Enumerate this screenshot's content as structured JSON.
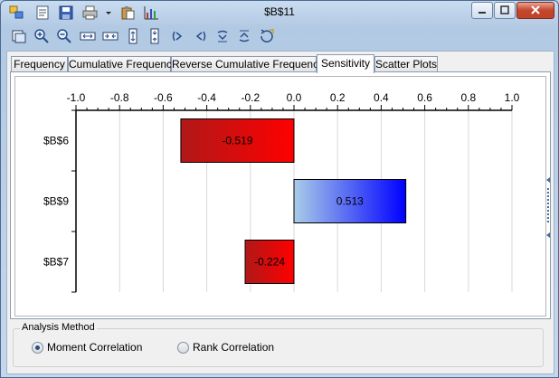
{
  "window": {
    "title": "$B$11",
    "toolbar_icons": [
      "copy-icon",
      "open-icon",
      "save-icon",
      "print-icon",
      "dropdown-arrow-icon",
      "clipboard-icon",
      "chart-icon"
    ],
    "toolbar2_icons": [
      "fit-window-icon",
      "zoom-in-icon",
      "zoom-out-icon",
      "expand-horizontal-icon",
      "shrink-horizontal-icon",
      "expand-vertical-icon",
      "shrink-vertical-icon",
      "rotate-left-icon",
      "rotate-right-icon",
      "flip-up-icon",
      "flip-down-icon",
      "reset-icon"
    ]
  },
  "tabs": [
    {
      "label": "Frequency"
    },
    {
      "label": "Cumulative Frequency"
    },
    {
      "label": "Reverse Cumulative Frequency"
    },
    {
      "label": "Sensitivity",
      "active": true
    },
    {
      "label": "Scatter Plots"
    }
  ],
  "chart_data": {
    "type": "bar",
    "orientation": "horizontal",
    "categories": [
      "$B$6",
      "$B$9",
      "$B$7"
    ],
    "values": [
      -0.519,
      0.513,
      -0.224
    ],
    "data_labels": [
      "-0.519",
      "0.513",
      "-0.224"
    ],
    "xlim": [
      -1.0,
      1.0
    ],
    "xticks": [
      "-1.0",
      "-0.8",
      "-0.6",
      "-0.4",
      "-0.2",
      "0.0",
      "0.2",
      "0.4",
      "0.6",
      "0.8",
      "1.0"
    ],
    "grid": true,
    "axis_position": "top",
    "negative_color": "#ff0000",
    "positive_color": "#0000ff"
  },
  "analysis": {
    "group_label": "Analysis Method",
    "options": [
      {
        "label": "Moment Correlation",
        "selected": true
      },
      {
        "label": "Rank Correlation",
        "selected": false
      }
    ]
  }
}
